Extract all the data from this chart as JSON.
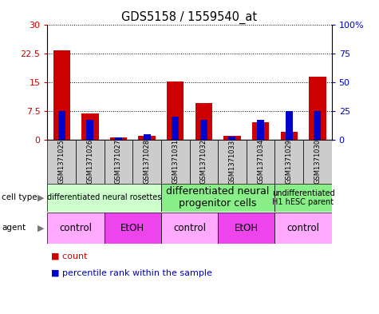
{
  "title": "GDS5158 / 1559540_at",
  "samples": [
    "GSM1371025",
    "GSM1371026",
    "GSM1371027",
    "GSM1371028",
    "GSM1371031",
    "GSM1371032",
    "GSM1371033",
    "GSM1371034",
    "GSM1371029",
    "GSM1371030"
  ],
  "red_values": [
    23.5,
    6.8,
    0.7,
    1.1,
    15.2,
    9.5,
    1.0,
    4.5,
    2.0,
    16.5
  ],
  "blue_values": [
    25,
    17,
    2,
    5,
    20,
    17,
    3,
    17,
    25,
    25
  ],
  "ylim": [
    0,
    30
  ],
  "yticks_left": [
    0,
    7.5,
    15,
    22.5,
    30
  ],
  "ytick_labels_left": [
    "0",
    "7.5",
    "15",
    "22.5",
    "30"
  ],
  "yticks_right": [
    0,
    25,
    50,
    75,
    100
  ],
  "ytick_labels_right": [
    "0",
    "25",
    "50",
    "75",
    "100%"
  ],
  "cell_type_groups": [
    {
      "label": "differentiated neural rosettes",
      "start": 0,
      "end": 4,
      "color": "#ccffcc",
      "fontsize": 7
    },
    {
      "label": "differentiated neural\nprogenitor cells",
      "start": 4,
      "end": 8,
      "color": "#88ee88",
      "fontsize": 9
    },
    {
      "label": "undifferentiated\nH1 hESC parent",
      "start": 8,
      "end": 10,
      "color": "#88ee88",
      "fontsize": 7
    }
  ],
  "agent_groups": [
    {
      "label": "control",
      "start": 0,
      "end": 2,
      "color": "#ffaaff"
    },
    {
      "label": "EtOH",
      "start": 2,
      "end": 4,
      "color": "#ee44ee"
    },
    {
      "label": "control",
      "start": 4,
      "end": 6,
      "color": "#ffaaff"
    },
    {
      "label": "EtOH",
      "start": 6,
      "end": 8,
      "color": "#ee44ee"
    },
    {
      "label": "control",
      "start": 8,
      "end": 10,
      "color": "#ffaaff"
    }
  ],
  "bar_color_red": "#cc0000",
  "bar_color_blue": "#0000cc",
  "bg_sample_color": "#cccccc",
  "left_axis_color": "#cc0000",
  "right_axis_color": "#0000cc",
  "bar_width": 0.6,
  "blue_bar_width": 0.25
}
